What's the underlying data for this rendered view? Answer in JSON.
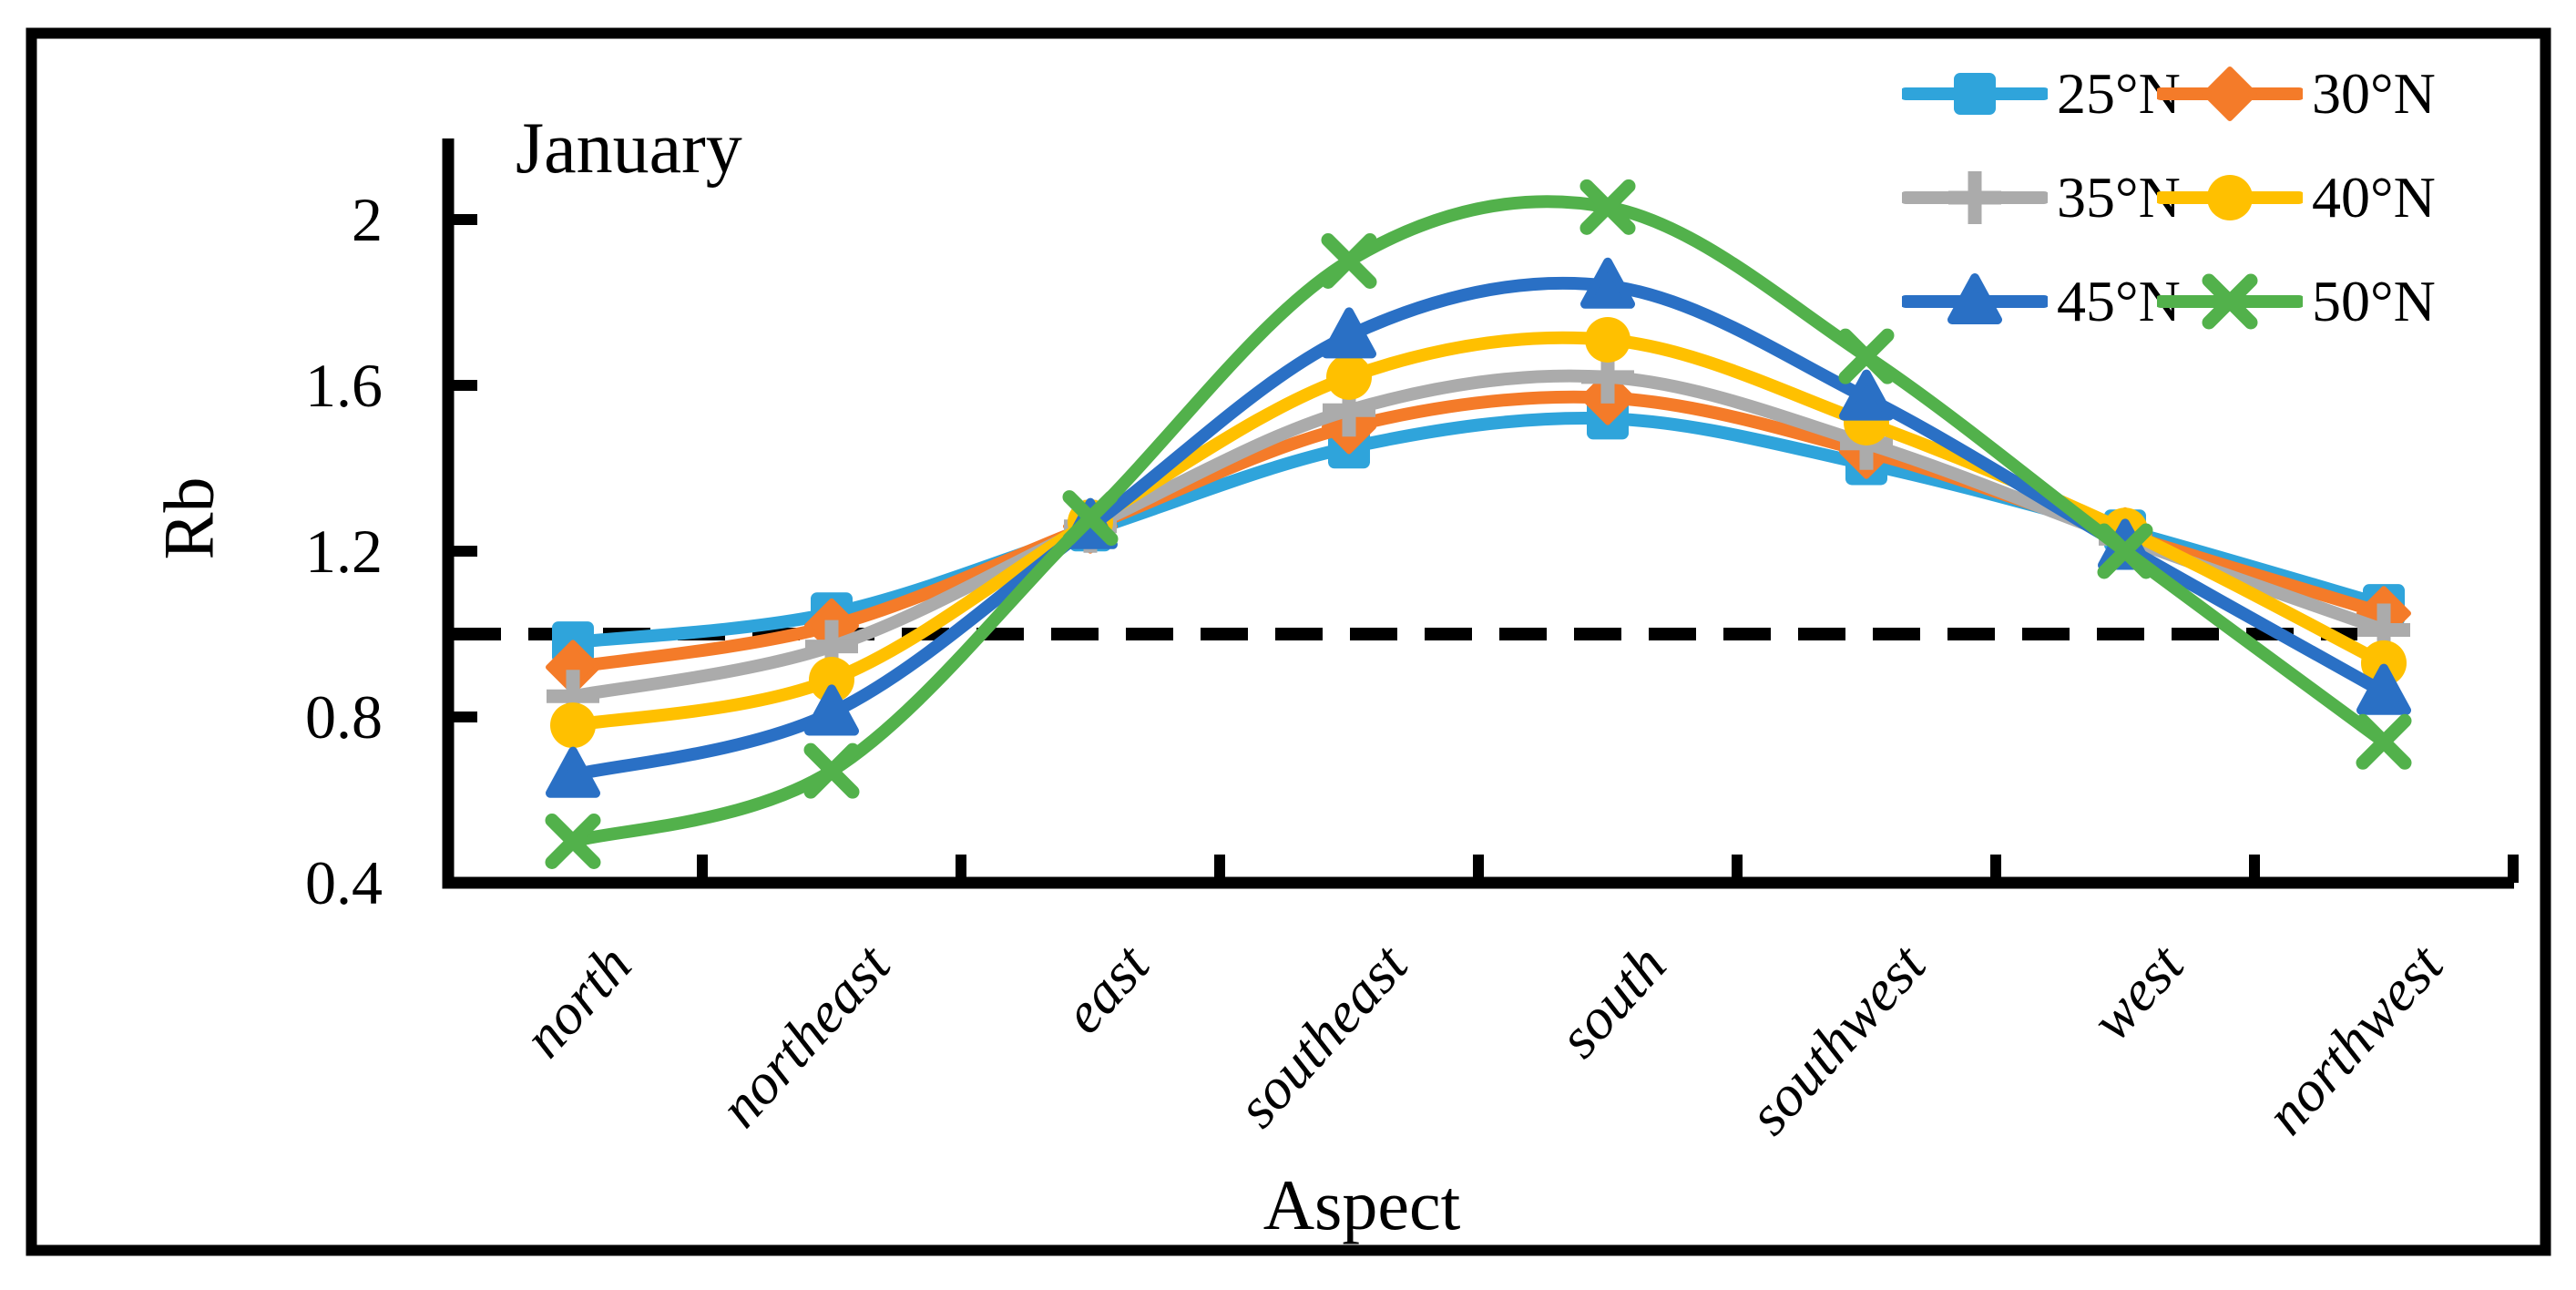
{
  "figure": {
    "background": "#ffffff",
    "border_color": "#000000",
    "text_color": "#000000"
  },
  "chart_data": {
    "type": "line",
    "title": "January",
    "xlabel": "Aspect",
    "ylabel": "Rb",
    "categories": [
      "north",
      "northeast",
      "east",
      "southeast",
      "south",
      "southwest",
      "west",
      "northwest"
    ],
    "ytick_labels": [
      "2",
      "1.6",
      "1.2",
      "0.8",
      "0.4"
    ],
    "yticks": [
      2.0,
      1.6,
      1.2,
      0.8,
      0.4
    ],
    "ylim": [
      0.4,
      2.12
    ],
    "grid": false,
    "line_style": "smooth",
    "legend_position": "top-right",
    "reference_line": {
      "y": 1.0,
      "style": "dashed",
      "color": "#000000"
    },
    "series": [
      {
        "name": "25°N",
        "marker": "square",
        "color": "#2FA4DB",
        "values": [
          0.98,
          1.05,
          1.25,
          1.45,
          1.52,
          1.41,
          1.25,
          1.07
        ]
      },
      {
        "name": "30°N",
        "marker": "diamond",
        "color": "#F47B29",
        "values": [
          0.92,
          1.02,
          1.26,
          1.5,
          1.57,
          1.44,
          1.24,
          1.05
        ]
      },
      {
        "name": "35°N",
        "marker": "plus",
        "color": "#ABABAB",
        "values": [
          0.85,
          0.97,
          1.26,
          1.54,
          1.62,
          1.46,
          1.23,
          1.01
        ]
      },
      {
        "name": "40°N",
        "marker": "circle",
        "color": "#FFC000",
        "values": [
          0.78,
          0.89,
          1.27,
          1.62,
          1.71,
          1.51,
          1.25,
          0.93
        ]
      },
      {
        "name": "45°N",
        "marker": "triangle",
        "color": "#2A70C5",
        "values": [
          0.66,
          0.81,
          1.26,
          1.72,
          1.84,
          1.57,
          1.21,
          0.86
        ]
      },
      {
        "name": "50°N",
        "marker": "x",
        "color": "#52B14B",
        "values": [
          0.5,
          0.67,
          1.28,
          1.9,
          2.03,
          1.67,
          1.2,
          0.74
        ]
      }
    ]
  }
}
